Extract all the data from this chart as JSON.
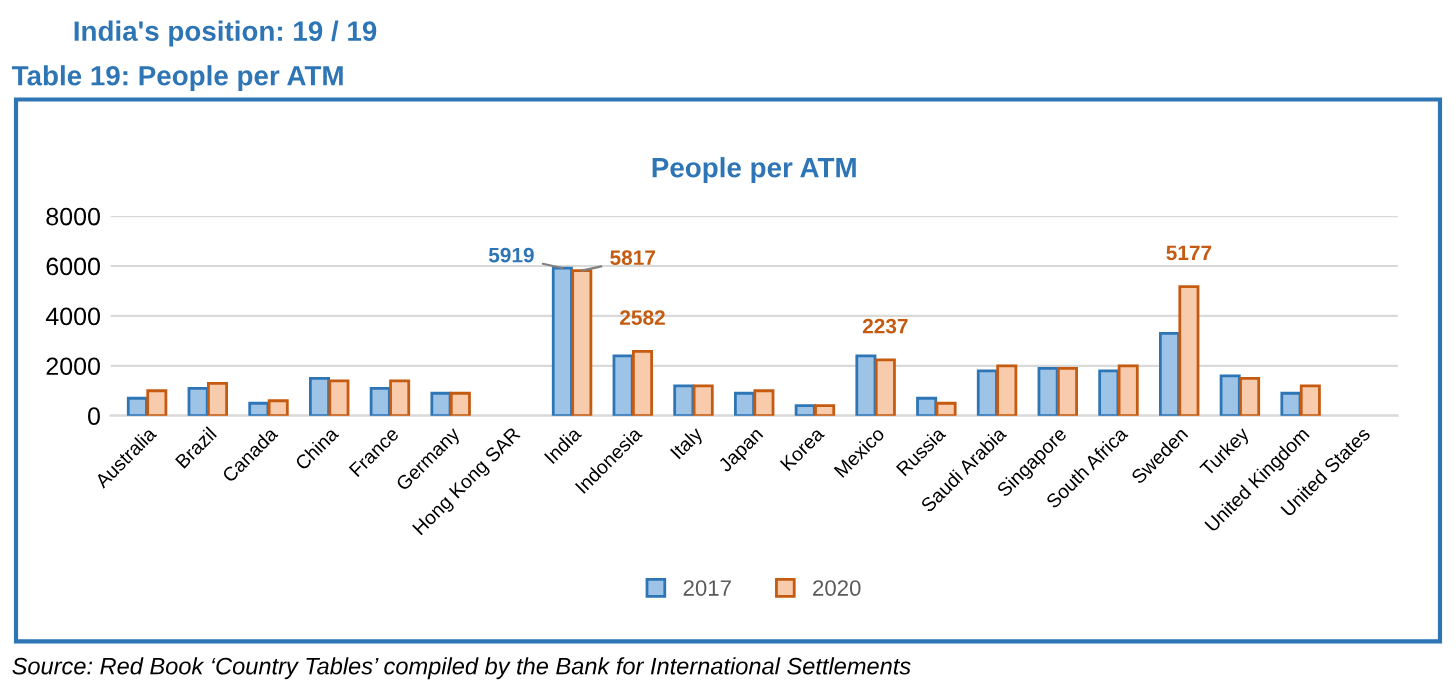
{
  "chart_data": {
    "type": "bar",
    "title": "People per ATM",
    "categories": [
      "Australia",
      "Brazil",
      "Canada",
      "China",
      "France",
      "Germany",
      "Hong Kong SAR",
      "India",
      "Indonesia",
      "Italy",
      "Japan",
      "Korea",
      "Mexico",
      "Russia",
      "Saudi Arabia",
      "Singapore",
      "South Africa",
      "Sweden",
      "Turkey",
      "United Kingdom",
      "United States"
    ],
    "series": [
      {
        "name": "2017",
        "color": "#9dc3e6",
        "values": [
          700,
          1100,
          500,
          1500,
          1100,
          900,
          null,
          5919,
          2400,
          1200,
          900,
          400,
          2400,
          700,
          1800,
          1900,
          1800,
          3300,
          1600,
          900,
          null
        ],
        "value_labels": [
          null,
          null,
          null,
          null,
          null,
          null,
          null,
          "5919",
          null,
          null,
          null,
          null,
          null,
          null,
          null,
          null,
          null,
          null,
          null,
          null,
          null
        ]
      },
      {
        "name": "2020",
        "color": "#f8cbad",
        "values": [
          1000,
          1300,
          600,
          1400,
          1400,
          900,
          null,
          5817,
          2582,
          1200,
          1000,
          400,
          2237,
          500,
          2000,
          1900,
          2000,
          5177,
          1500,
          1200,
          null
        ],
        "value_labels": [
          null,
          null,
          null,
          null,
          null,
          null,
          null,
          "5817",
          "2582",
          null,
          null,
          null,
          "2237",
          null,
          null,
          null,
          null,
          "5177",
          null,
          null,
          null
        ]
      }
    ],
    "ylim": [
      0,
      8000
    ],
    "yticks": [
      0,
      2000,
      4000,
      6000,
      8000
    ],
    "grid": "y",
    "legend": "bottom",
    "annotations": [
      "India's position: 19 / 19",
      "Table 19: People per ATM",
      "Source: Red Book ‘Country Tables’ compiled by the Bank for International Settlements"
    ]
  }
}
